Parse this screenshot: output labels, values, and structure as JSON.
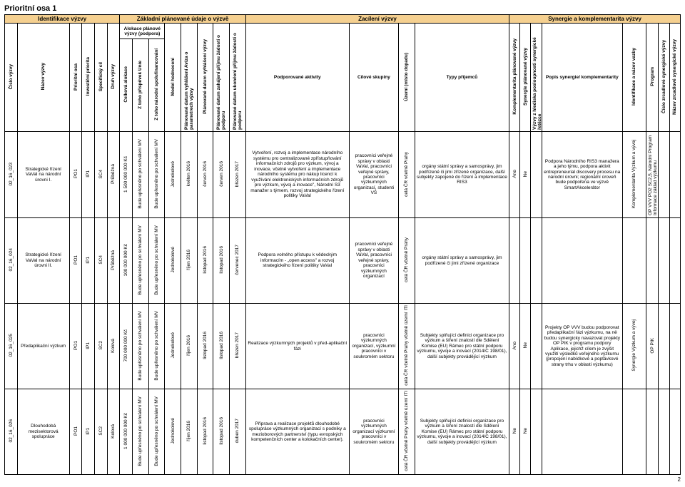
{
  "page": {
    "title": "Prioritní osa 1",
    "number": "2"
  },
  "bands": {
    "ident": "Identifikace výzvy",
    "basic": "Základní plánované údaje o výzvě",
    "target": "Zacílení výzvy",
    "syn": "Synergie a komplementarita výzvy"
  },
  "subhead": {
    "alloc": "Alokace plánové výzvy (podpora)"
  },
  "headers": {
    "cislo": "Číslo výzvy",
    "nazev": "Název výzvy",
    "po": "Prioritní osa",
    "ip": "Investiční priorita",
    "sc": "Specifický cíl",
    "druh": "Druh výzvy",
    "celkova": "Celková alokace",
    "eu": "Z toho příspěvek Unie",
    "narod": "Z toho národní spolufinancování",
    "model": "Model hodnocení",
    "plan_vyhl": "Plánované datum vyhlášení Avíza o parametrech výzvy",
    "plan_vyh": "Plánované datum vyhlášení výzvy",
    "plan_zah": "Plánované datum zahájení příjmu žádostí o podporu",
    "plan_uk": "Plánované datum ukončení příjmu žádostí o podporu",
    "aktiv": "Podporované aktivity",
    "skup": "Cílové skupiny",
    "uzemi": "Území (místo dopadu)",
    "prij": "Typy příjemců",
    "komp": "Komplementarita plánované výzvy",
    "synp": "Synergie plánované výzvy",
    "vyzvy": "Výzvy z hlediska posloupnosti synergické řetězce",
    "popis": "Popis synergie/ komplementarity",
    "idn": "Identifikace a název vazby",
    "prog": "Program",
    "cz": "Číslo zrcadlové synergické výzvy",
    "nz": "Název zrcadlové synergické výzvy"
  },
  "rows": [
    {
      "cislo": "02_16_023",
      "nazev": "Strategické řízení VaVaI na národní úrovni I.",
      "po": "PO1",
      "ip": "IP1",
      "sc": "SC4",
      "druh": "Průběžná",
      "celkova": "1 500 000 000 Kč",
      "eu": "Bude upřesněno po schválení MV",
      "narod": "Bude upřesněno po schválení MV",
      "model": "Jednokolové",
      "d1": "květen 2016",
      "d2": "červen 2016",
      "d3": "červen 2016",
      "d4": "březen 2017",
      "aktiv": "Vytvoření, rozvoj a implementace národního systému pro centralizované zpřístupňování informačních zdrojů pro výzkum, vývoj a inovace, včetně vytvoření a implementace národního systému pro nákup licencí k využívání elektronických informačních zdrojů pro výzkum, vývoj a inovace\", Národní S3 manažer s týmem, rozvoj strategického řízení politiky VaVaI",
      "skup": "pracovníci veřejné správy v oblasti VaVaI, pracovníci veřejné správy, pracovníci výzkumných organizací, studenti VŠ",
      "uzemi": "celá ČR včetně Prahy",
      "prij": "orgány státní správy a samosprávy, jim podřízené či jimi zřízené organizace, další subjekty zapojené do řízení a implementace RIS3",
      "kp": "Ano",
      "sp": "Ne",
      "popis": "Podpora Národního RIS3 manažera a jeho týmu, podpora aktivit entrepreneurial discovery procesu na národní úrovni; regionální úroveň bude podpořena ve výzvě SmartAkcelerátor",
      "idn": "Komplementarita Výzkum a vývoj",
      "prog": "OP VVV PO2 SC2,5, Národní Program Informace základ výzkumu"
    },
    {
      "cislo": "02_16_024",
      "nazev": "Strategické řízení VaVaI na národní úrovni II.",
      "po": "PO1",
      "ip": "IP1",
      "sc": "SC4",
      "druh": "Průběžná",
      "celkova": "100 000 000 Kč",
      "eu": "Bude upřesněno po schválení MV",
      "narod": "Bude upřesněno po schválení MV",
      "model": "Jednokolové",
      "d1": "říjen 2016",
      "d2": "listopad 2016",
      "d3": "listopad 2016",
      "d4": "červenec 2017",
      "aktiv": "Podpora volného přístupu k vědeckým informacím - „open access\" a rozvoj strategického řízení politiky VaVaI",
      "skup": "pracovníci veřejné správy v oblasti VaVaI, pracovníci veřejné správy, pracovníci výzkumných organizací",
      "uzemi": "celá ČR včetně Prahy",
      "prij": "orgány státní správy a samosprávy, jim podřízené či jimi zřízené organizace",
      "kp": "",
      "sp": "",
      "popis": "",
      "idn": "",
      "prog": ""
    },
    {
      "cislo": "02_16_025",
      "nazev": "Předaplikační výzkum",
      "po": "PO1",
      "ip": "IP1",
      "sc": "SC2",
      "druh": "Kolová",
      "celkova": "700 000 000 Kč",
      "eu": "Bude upřesněno po schválení MV",
      "narod": "Bude upřesněno po schválení MV",
      "model": "Jednokolové",
      "d1": "říjen 2016",
      "d2": "listopad 2016",
      "d3": "listopad 2016",
      "d4": "březen 2017",
      "aktiv": "Realizace výzkumných projektů v před-aplikační fázi",
      "skup": "pracovníci výzkumných organizací, výzkumní pracovníci v soukromém sektoru",
      "uzemi": "celá ČR včetně Prahy včetně území ITI",
      "prij": "Subjekty splňující definici organizace pro výzkum a šíření znalostí dle Sdělení Komise (EU) Rámec pro státní podporu výzkumu, vývoje a inovací (2014/C 198/01), další subjekty provádějící výzkum",
      "kp": "Ano",
      "sp": "Ne",
      "popis": "Projekty OP VVV budou podporovat předaplikační fázi výzkumu, na ně budou synergicky navazovat projekty OP PIK v programu podpory Aplikace, jejichž cílem je zvýšit využití výsledků veřejného výzkumu (propojení nabídkové a poptávkové strany trhu v oblasti výzkumu)",
      "idn": "Synergie Výzkum a vývoj",
      "prog": "OP PIK"
    },
    {
      "cislo": "02_16_026",
      "nazev": "Dlouhodobá mezisektorová spolupráce",
      "po": "PO1",
      "ip": "IP1",
      "sc": "SC2",
      "druh": "Kolová",
      "celkova": "1 000 000 000 Kč",
      "eu": "Bude upřesněno po schválení MV",
      "narod": "Bude upřesněno po schválení MV",
      "model": "Jednokolové",
      "d1": "říjen 2016",
      "d2": "listopad 2016",
      "d3": "listopad 2016",
      "d4": "duben 2017",
      "aktiv": "Příprava a realizace projektů dlouhodobé spolupráce výzkumných organizací s podniky a mezioborových partnerství (typu evropských kompetenčních center a kolokačních center).",
      "skup": "pracovníci výzkumných organizací výzkumní pracovníci v soukromém sektoru",
      "uzemi": "celá ČR včetně Prahy včetně území ITI",
      "prij": "Subjekty splňující definici organizace pro výzkum a šíření znalostí dle Sdělení Komise (EU) Rámec pro státní podporu výzkumu, vývoje a inovací (2014/C 198/01), další subjekty provádějící výzkum",
      "kp": "Ne",
      "sp": "Ne",
      "popis": "",
      "idn": "",
      "prog": ""
    }
  ]
}
